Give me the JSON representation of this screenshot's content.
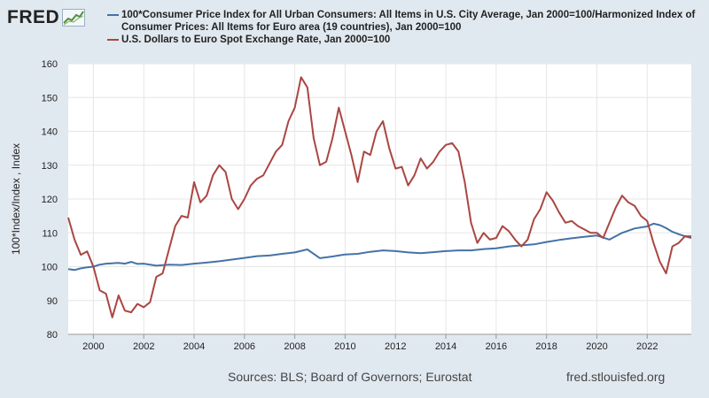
{
  "header": {
    "logo_text": "FRED"
  },
  "footer": {
    "sources": "Sources: BLS; Board of Governors; Eurostat",
    "site": "fred.stlouisfed.org"
  },
  "colors": {
    "series1": "#4572a7",
    "series2": "#aa4643",
    "background": "#e1e9f0",
    "plot_background": "#ffffff",
    "grid": "#e6e6e6"
  },
  "chart_data": {
    "type": "line",
    "ylabel": "100*Index/Index , Index",
    "xlabel": "",
    "ylim": [
      80,
      160
    ],
    "xlim": [
      1999.0,
      2023.75
    ],
    "yticks": [
      80,
      90,
      100,
      110,
      120,
      130,
      140,
      150,
      160
    ],
    "xticks": [
      2000,
      2002,
      2004,
      2006,
      2008,
      2010,
      2012,
      2014,
      2016,
      2018,
      2020,
      2022
    ],
    "grid": true,
    "legend_position": "top",
    "series": [
      {
        "name": "100*Consumer Price Index for All Urban Consumers: All Items in U.S. City Average, Jan 2000=100/Harmonized Index of Consumer Prices: All Items for Euro area (19 countries), Jan 2000=100",
        "color": "#4572a7",
        "points": [
          [
            1999.0,
            99.3
          ],
          [
            1999.25,
            99.0
          ],
          [
            1999.5,
            99.5
          ],
          [
            1999.75,
            99.8
          ],
          [
            2000.0,
            100.0
          ],
          [
            2000.25,
            100.6
          ],
          [
            2000.5,
            100.9
          ],
          [
            2000.75,
            101.0
          ],
          [
            2001.0,
            101.1
          ],
          [
            2001.25,
            100.9
          ],
          [
            2001.5,
            101.4
          ],
          [
            2001.75,
            100.8
          ],
          [
            2002.0,
            100.9
          ],
          [
            2002.5,
            100.3
          ],
          [
            2003.0,
            100.6
          ],
          [
            2003.5,
            100.5
          ],
          [
            2004.0,
            100.9
          ],
          [
            2004.5,
            101.2
          ],
          [
            2005.0,
            101.6
          ],
          [
            2005.5,
            102.1
          ],
          [
            2006.0,
            102.6
          ],
          [
            2006.5,
            103.1
          ],
          [
            2007.0,
            103.3
          ],
          [
            2007.5,
            103.8
          ],
          [
            2008.0,
            104.2
          ],
          [
            2008.5,
            105.1
          ],
          [
            2009.0,
            102.5
          ],
          [
            2009.5,
            103.0
          ],
          [
            2010.0,
            103.6
          ],
          [
            2010.5,
            103.8
          ],
          [
            2011.0,
            104.4
          ],
          [
            2011.5,
            104.8
          ],
          [
            2012.0,
            104.6
          ],
          [
            2012.5,
            104.2
          ],
          [
            2013.0,
            104.0
          ],
          [
            2013.5,
            104.3
          ],
          [
            2014.0,
            104.6
          ],
          [
            2014.5,
            104.8
          ],
          [
            2015.0,
            104.8
          ],
          [
            2015.5,
            105.2
          ],
          [
            2016.0,
            105.4
          ],
          [
            2016.5,
            106.0
          ],
          [
            2017.0,
            106.3
          ],
          [
            2017.5,
            106.6
          ],
          [
            2018.0,
            107.3
          ],
          [
            2018.5,
            107.9
          ],
          [
            2019.0,
            108.4
          ],
          [
            2019.5,
            108.8
          ],
          [
            2020.0,
            109.2
          ],
          [
            2020.5,
            108.0
          ],
          [
            2021.0,
            110.0
          ],
          [
            2021.5,
            111.3
          ],
          [
            2022.0,
            111.9
          ],
          [
            2022.25,
            112.7
          ],
          [
            2022.5,
            112.3
          ],
          [
            2022.75,
            111.4
          ],
          [
            2023.0,
            110.3
          ],
          [
            2023.25,
            109.6
          ],
          [
            2023.5,
            109.0
          ],
          [
            2023.75,
            109.0
          ]
        ]
      },
      {
        "name": "U.S. Dollars to Euro Spot Exchange Rate, Jan 2000=100",
        "color": "#aa4643",
        "points": [
          [
            1999.0,
            114.5
          ],
          [
            1999.25,
            108.0
          ],
          [
            1999.5,
            103.5
          ],
          [
            1999.75,
            104.5
          ],
          [
            2000.0,
            100.0
          ],
          [
            2000.25,
            93.0
          ],
          [
            2000.5,
            92.0
          ],
          [
            2000.75,
            85.0
          ],
          [
            2001.0,
            91.5
          ],
          [
            2001.25,
            87.0
          ],
          [
            2001.5,
            86.5
          ],
          [
            2001.75,
            89.0
          ],
          [
            2002.0,
            88.0
          ],
          [
            2002.25,
            89.5
          ],
          [
            2002.5,
            97.0
          ],
          [
            2002.75,
            98.0
          ],
          [
            2003.0,
            105.0
          ],
          [
            2003.25,
            112.0
          ],
          [
            2003.5,
            115.0
          ],
          [
            2003.75,
            114.5
          ],
          [
            2004.0,
            125.0
          ],
          [
            2004.25,
            119.0
          ],
          [
            2004.5,
            121.0
          ],
          [
            2004.75,
            127.0
          ],
          [
            2005.0,
            130.0
          ],
          [
            2005.25,
            128.0
          ],
          [
            2005.5,
            120.0
          ],
          [
            2005.75,
            117.0
          ],
          [
            2006.0,
            120.0
          ],
          [
            2006.25,
            124.0
          ],
          [
            2006.5,
            126.0
          ],
          [
            2006.75,
            127.0
          ],
          [
            2007.0,
            130.5
          ],
          [
            2007.25,
            134.0
          ],
          [
            2007.5,
            136.0
          ],
          [
            2007.75,
            143.0
          ],
          [
            2008.0,
            147.0
          ],
          [
            2008.25,
            156.0
          ],
          [
            2008.5,
            153.0
          ],
          [
            2008.75,
            138.0
          ],
          [
            2009.0,
            130.0
          ],
          [
            2009.25,
            131.0
          ],
          [
            2009.5,
            138.0
          ],
          [
            2009.75,
            147.0
          ],
          [
            2010.0,
            140.0
          ],
          [
            2010.25,
            133.0
          ],
          [
            2010.5,
            125.0
          ],
          [
            2010.75,
            134.0
          ],
          [
            2011.0,
            133.0
          ],
          [
            2011.25,
            140.0
          ],
          [
            2011.5,
            143.0
          ],
          [
            2011.75,
            135.0
          ],
          [
            2012.0,
            129.0
          ],
          [
            2012.25,
            129.5
          ],
          [
            2012.5,
            124.0
          ],
          [
            2012.75,
            127.0
          ],
          [
            2013.0,
            132.0
          ],
          [
            2013.25,
            129.0
          ],
          [
            2013.5,
            131.0
          ],
          [
            2013.75,
            134.0
          ],
          [
            2014.0,
            136.0
          ],
          [
            2014.25,
            136.5
          ],
          [
            2014.5,
            134.0
          ],
          [
            2014.75,
            125.0
          ],
          [
            2015.0,
            113.0
          ],
          [
            2015.25,
            107.0
          ],
          [
            2015.5,
            110.0
          ],
          [
            2015.75,
            108.0
          ],
          [
            2016.0,
            108.5
          ],
          [
            2016.25,
            112.0
          ],
          [
            2016.5,
            110.5
          ],
          [
            2016.75,
            108.0
          ],
          [
            2017.0,
            106.0
          ],
          [
            2017.25,
            108.0
          ],
          [
            2017.5,
            114.0
          ],
          [
            2017.75,
            117.0
          ],
          [
            2018.0,
            122.0
          ],
          [
            2018.25,
            119.5
          ],
          [
            2018.5,
            116.0
          ],
          [
            2018.75,
            113.0
          ],
          [
            2019.0,
            113.5
          ],
          [
            2019.25,
            112.0
          ],
          [
            2019.5,
            111.0
          ],
          [
            2019.75,
            110.0
          ],
          [
            2020.0,
            110.0
          ],
          [
            2020.25,
            108.5
          ],
          [
            2020.5,
            113.0
          ],
          [
            2020.75,
            117.5
          ],
          [
            2021.0,
            121.0
          ],
          [
            2021.25,
            119.0
          ],
          [
            2021.5,
            118.0
          ],
          [
            2021.75,
            115.0
          ],
          [
            2022.0,
            113.5
          ],
          [
            2022.25,
            107.0
          ],
          [
            2022.5,
            101.5
          ],
          [
            2022.75,
            98.0
          ],
          [
            2023.0,
            106.0
          ],
          [
            2023.25,
            107.0
          ],
          [
            2023.5,
            109.0
          ],
          [
            2023.75,
            108.5
          ]
        ]
      }
    ]
  }
}
